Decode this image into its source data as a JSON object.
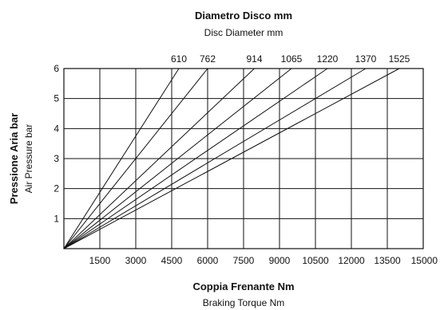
{
  "chart_data": {
    "type": "line",
    "title": "Diametro Disco  mm",
    "subtitle": "Disc Diameter  mm",
    "xlabel": "Coppia Frenante  Nm",
    "xlabel_en": "Braking Torque  Nm",
    "ylabel": "Pressione Aria  bar",
    "ylabel_en": "Air Pressure  bar",
    "xlim": [
      0,
      15000
    ],
    "ylim": [
      0,
      6
    ],
    "xticks": [
      1500,
      3000,
      4500,
      6000,
      7500,
      9000,
      10500,
      12000,
      13500,
      15000
    ],
    "yticks": [
      1,
      2,
      3,
      4,
      5,
      6
    ],
    "grid": true,
    "series": [
      {
        "name": "610",
        "x": [
          0,
          4800
        ],
        "y": [
          0,
          6
        ]
      },
      {
        "name": "762",
        "x": [
          0,
          6000
        ],
        "y": [
          0,
          6
        ]
      },
      {
        "name": "914",
        "x": [
          0,
          7950
        ],
        "y": [
          0,
          6
        ]
      },
      {
        "name": "1065",
        "x": [
          0,
          9500
        ],
        "y": [
          0,
          6
        ]
      },
      {
        "name": "1220",
        "x": [
          0,
          11000
        ],
        "y": [
          0,
          6
        ]
      },
      {
        "name": "1370",
        "x": [
          0,
          12600
        ],
        "y": [
          0,
          6
        ]
      },
      {
        "name": "1525",
        "x": [
          0,
          14000
        ],
        "y": [
          0,
          6
        ]
      }
    ]
  }
}
